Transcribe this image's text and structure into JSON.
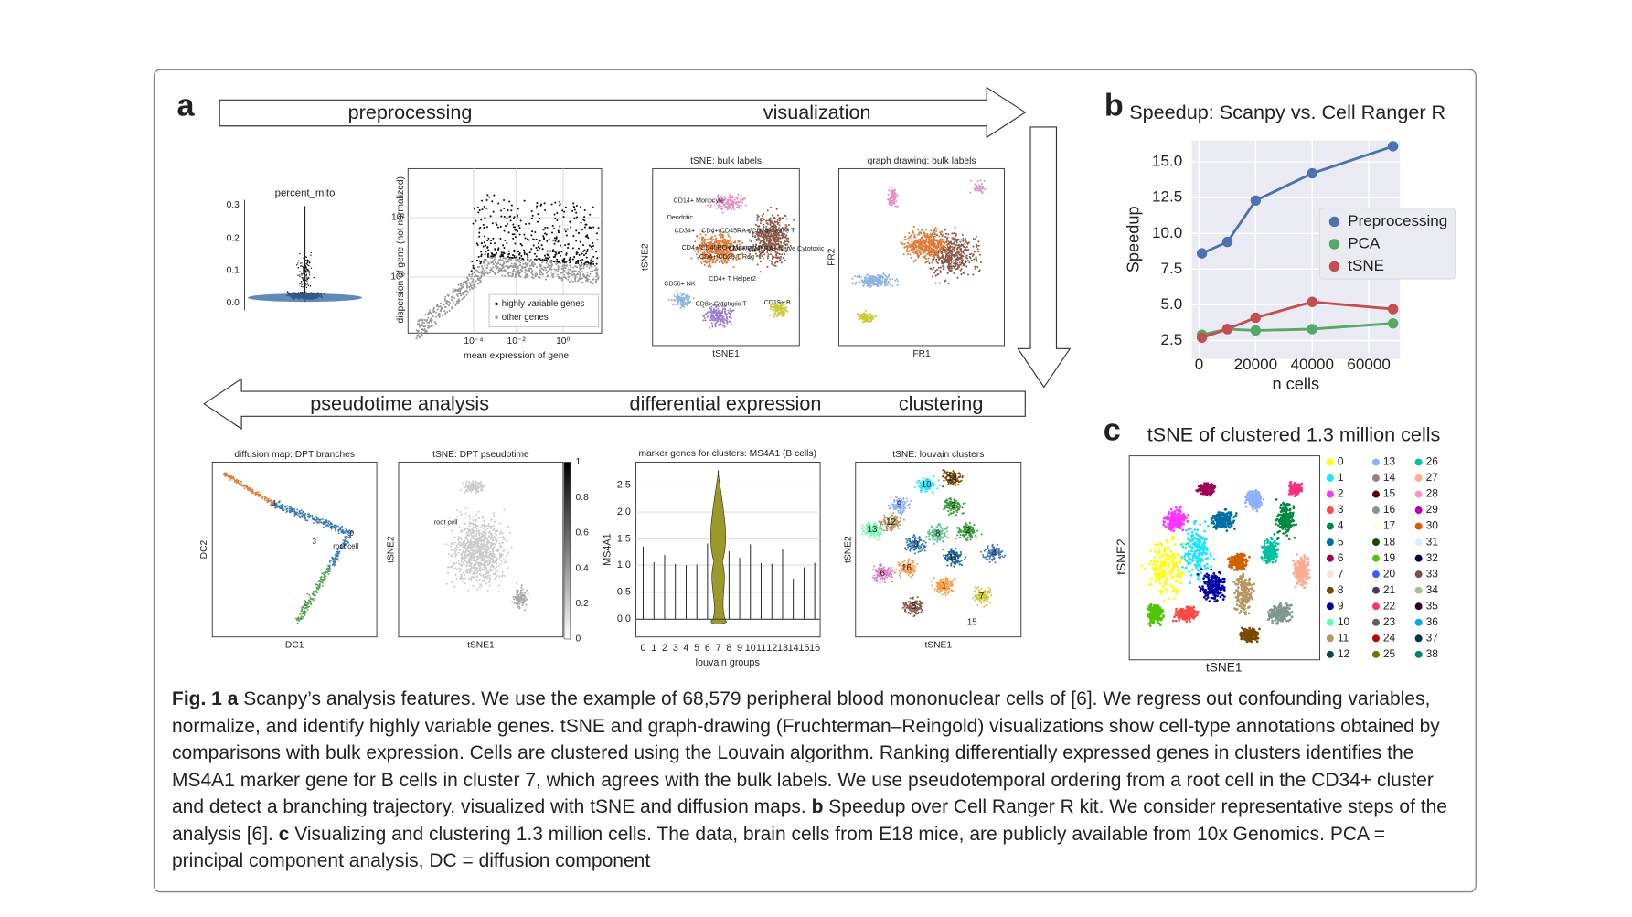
{
  "panel_a": {
    "label": "a",
    "arrow_top": [
      "preprocessing",
      "visualization"
    ],
    "arrow_bottom": [
      "pseudotime analysis",
      "differential expression",
      "clustering"
    ],
    "violin": {
      "title": "percent_mito",
      "yticks": [
        "0.3",
        "0.2",
        "0.1",
        "0.0"
      ]
    },
    "dispersion": {
      "ylabel": "dispersion of gene (not normalized)",
      "xlabel": "mean expression of gene",
      "yticks": [
        "10¹",
        "10⁰"
      ],
      "xticks": [
        "10⁻⁴",
        "10⁻²",
        "10⁰"
      ],
      "legend": [
        "highly variable genes",
        "other genes"
      ]
    },
    "tsne_bulk": {
      "title": "tSNE: bulk labels",
      "xlabel": "tSNE1",
      "ylabel": "tSNE2",
      "labels": [
        "CD14+ Monocyte",
        "Dendritic",
        "CD34+",
        "CD4+/CD45RA+/CD25- Naive T",
        "CD4+/CD45RO+ Memory",
        "CD8+/CD45RA+ Naive Cytotoxic",
        "CD4+/CD25 T Reg",
        "CD4+ T Helper2",
        "CD56+ NK",
        "CD8+ Cytotoxic T",
        "CD19+ B"
      ]
    },
    "graph_drawing": {
      "title": "graph drawing: bulk labels",
      "xlabel": "FR1",
      "ylabel": "FR2"
    },
    "diffusion_map": {
      "title": "diffusion map: DPT branches",
      "xlabel": "DC1",
      "ylabel": "DC2",
      "labels": [
        "1",
        "3",
        "0",
        "root cell",
        "2"
      ]
    },
    "pseudotime": {
      "title": "tSNE: DPT pseudotime",
      "xlabel": "tSNE1",
      "ylabel": "tSNE2",
      "annotation": "root cell",
      "colorbar_ticks": [
        "1",
        "0.8",
        "0.6",
        "0.4",
        "0.2",
        "0"
      ]
    },
    "marker_genes": {
      "title": "marker genes for clusters: MS4A1 (B cells)",
      "ylabel": "MS4A1",
      "xlabel": "louvain groups",
      "yticks": [
        "2.5",
        "2.0",
        "1.5",
        "1.0",
        "0.5",
        "0.0"
      ],
      "xticks": [
        "0",
        "1",
        "2",
        "3",
        "4",
        "5",
        "6",
        "7",
        "8",
        "9",
        "10",
        "11",
        "12",
        "13",
        "14",
        "15",
        "16"
      ]
    },
    "louvain": {
      "title": "tSNE: louvain clusters",
      "xlabel": "tSNE1",
      "ylabel": "tSNE2",
      "labels": [
        "10",
        "14",
        "9",
        "3",
        "12",
        "13",
        "0",
        "8",
        "2",
        "4",
        "6",
        "16",
        "11",
        "5",
        "1",
        "7",
        "15"
      ]
    }
  },
  "chart_data": {
    "type": "line",
    "label": "b",
    "title": "Speedup: Scanpy vs. Cell Ranger R",
    "xlabel": "n cells",
    "ylabel": "Speedup",
    "x": [
      1000,
      10000,
      20000,
      40000,
      68579
    ],
    "series": [
      {
        "name": "Preprocessing",
        "color": "#4c72b0",
        "values": [
          8.6,
          9.4,
          12.3,
          14.2,
          16.1
        ]
      },
      {
        "name": "PCA",
        "color": "#55a868",
        "values": [
          2.9,
          3.3,
          3.2,
          3.3,
          3.7
        ]
      },
      {
        "name": "tSNE",
        "color": "#c44e52",
        "values": [
          2.7,
          3.3,
          4.1,
          5.2,
          4.7
        ]
      }
    ],
    "xlim": [
      -2600,
      71000
    ],
    "ylim": [
      1.2,
      16.5
    ],
    "xticks": [
      0,
      20000,
      40000,
      60000
    ],
    "yticks": [
      2.5,
      {
        "value": 5,
        "label": "5.0"
      },
      7.5,
      {
        "value": 10,
        "label": "10.0"
      },
      12.5,
      {
        "value": 15,
        "label": "15.0"
      }
    ],
    "grid": true,
    "legend": "center right"
  },
  "panel_c": {
    "label": "c",
    "title": "tSNE of clustered 1.3 million cells",
    "xlabel": "tSNE1",
    "ylabel": "tSNE2",
    "legend": [
      "0",
      "1",
      "2",
      "3",
      "4",
      "5",
      "6",
      "7",
      "8",
      "9",
      "10",
      "11",
      "12",
      "13",
      "14",
      "15",
      "16",
      "17",
      "18",
      "19",
      "20",
      "21",
      "22",
      "23",
      "24",
      "25",
      "26",
      "27",
      "28",
      "29",
      "30",
      "31",
      "32",
      "33",
      "34",
      "35",
      "36",
      "37",
      "38"
    ],
    "colors": [
      "#ffff00",
      "#1ce6ff",
      "#ff34ff",
      "#ff4a46",
      "#008941",
      "#006fa6",
      "#a30059",
      "#ffdbe5",
      "#7a4900",
      "#0000a6",
      "#63ffac",
      "#b79762",
      "#004d43",
      "#8fb0ff",
      "#997d87",
      "#5a0007",
      "#809693",
      "#feffe6",
      "#1b4400",
      "#4fc601",
      "#3b5dff",
      "#4a3b53",
      "#ff2f80",
      "#61615a",
      "#ba0900",
      "#6b7900",
      "#00c2a0",
      "#ffaa92",
      "#ff90c9",
      "#b903aa",
      "#d16100",
      "#ddefff",
      "#000035",
      "#7b4f4b",
      "#a1c299",
      "#300018",
      "#0aa6d8",
      "#013349",
      "#00846f"
    ]
  },
  "caption": {
    "figure": "Fig. 1",
    "label_a": "a",
    "text_a": "Scanpy’s analysis features. We use the example of 68,579 peripheral blood mononuclear cells of [6]. We regress out confounding variables, normalize, and identify highly variable genes. tSNE and graph-drawing (Fruchterman–Reingold) visualizations show cell-type annotations obtained by comparisons with bulk expression. Cells are clustered using the Louvain algorithm. Ranking differentially expressed genes in clusters identifies the MS4A1 marker gene for B cells in cluster 7, which agrees with the bulk labels. We use pseudotemporal ordering from a root cell in the CD34+ cluster and detect a branching trajectory, visualized with tSNE and diffusion maps.",
    "label_b": "b",
    "text_b": "Speedup over Cell Ranger R kit. We consider representative steps of the analysis [6].",
    "label_c": "c",
    "text_c": "Visualizing and clustering 1.3 million cells. The data, brain cells from E18 mice, are publicly available from 10x Genomics. PCA = principal component analysis, DC = diffusion component"
  }
}
